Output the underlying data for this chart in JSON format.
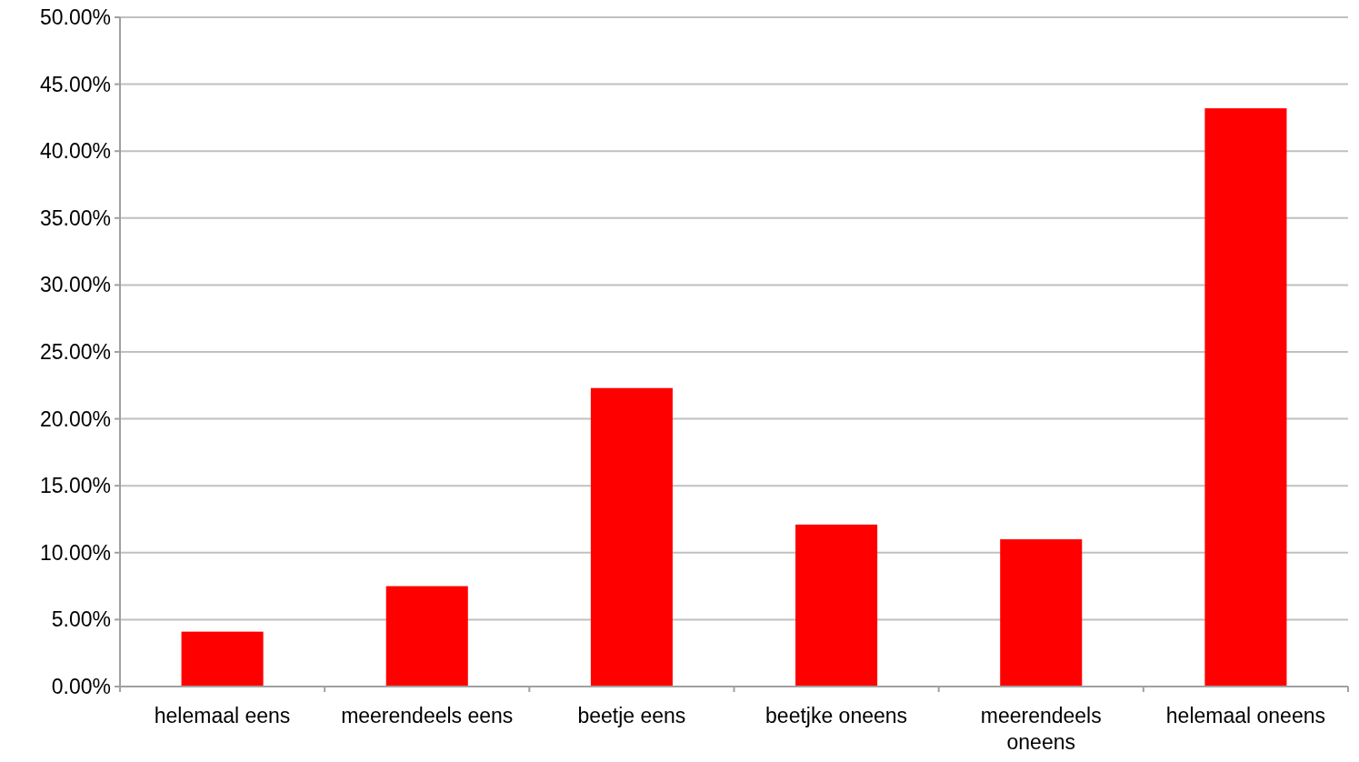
{
  "chart_data": {
    "type": "bar",
    "categories": [
      "helemaal eens",
      "meerendeels eens",
      "beetje eens",
      "beetjke oneens",
      "meerendeels oneens",
      "helemaal oneens"
    ],
    "values": [
      4.1,
      7.5,
      22.3,
      12.1,
      11.0,
      43.2
    ],
    "color": "#ff0000",
    "ylim": [
      0,
      50
    ],
    "yticks": [
      {
        "value": 0,
        "label": "0.00%"
      },
      {
        "value": 5,
        "label": "5.00%"
      },
      {
        "value": 10,
        "label": "10.00%"
      },
      {
        "value": 15,
        "label": "15.00%"
      },
      {
        "value": 20,
        "label": "20.00%"
      },
      {
        "value": 25,
        "label": "25.00%"
      },
      {
        "value": 30,
        "label": "30.00%"
      },
      {
        "value": 35,
        "label": "35.00%"
      },
      {
        "value": 40,
        "label": "40.00%"
      },
      {
        "value": 45,
        "label": "45.00%"
      },
      {
        "value": 50,
        "label": "50.00%"
      }
    ],
    "grid": "y"
  }
}
